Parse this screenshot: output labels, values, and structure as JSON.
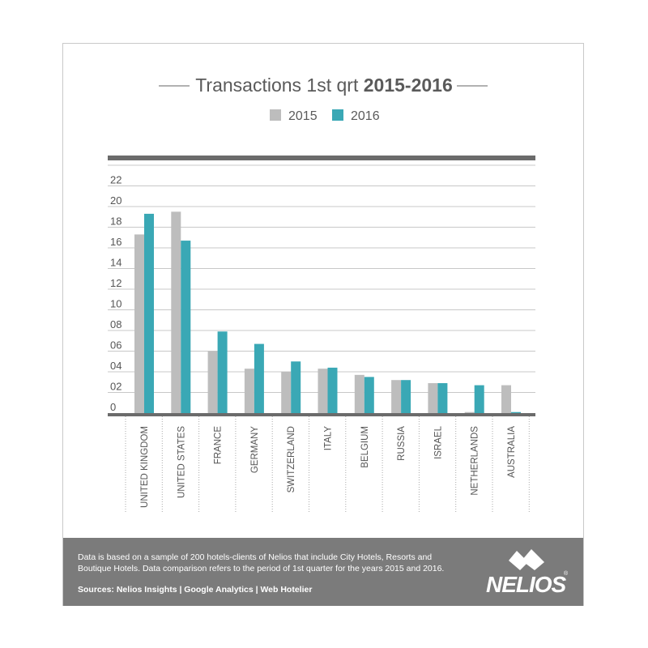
{
  "chart_data": {
    "type": "bar",
    "title_regular": "Transactions 1st qrt ",
    "title_bold": "2015-2016",
    "categories": [
      "UNITED KINGDOM",
      "UNITED STATES",
      "FRANCE",
      "GERMANY",
      "SWITZERLAND",
      "ITALY",
      "BELGIUM",
      "RUSSIA",
      "ISRAEL",
      "NETHERLANDS",
      "AUSTRALIA"
    ],
    "series": [
      {
        "name": "2015",
        "color": "#bdbdbd",
        "values": [
          17.3,
          19.5,
          6.0,
          4.3,
          4.0,
          4.3,
          3.7,
          3.2,
          2.9,
          0.1,
          2.7
        ]
      },
      {
        "name": "2016",
        "color": "#3aa8b5",
        "values": [
          19.3,
          16.7,
          7.9,
          6.7,
          5.0,
          4.4,
          3.5,
          3.2,
          2.9,
          2.7,
          0.1
        ]
      }
    ],
    "yticks": [
      "0",
      "02",
      "04",
      "06",
      "08",
      "10",
      "12",
      "14",
      "16",
      "18",
      "20",
      "22"
    ],
    "ylim": [
      0,
      24
    ],
    "grid": true,
    "legend": "top-center"
  },
  "footer": {
    "note": "Data is based on a sample of 200 hotels-clients of Nelios that include City Hotels, Resorts and Boutique Hotels. Data comparison refers to the period of 1st quarter for the years 2015 and 2016.",
    "sources": "Sources: Nelios Insights | Google Analytics | Web Hotelier",
    "logo_text": "NELIOS",
    "logo_reg": "®"
  }
}
